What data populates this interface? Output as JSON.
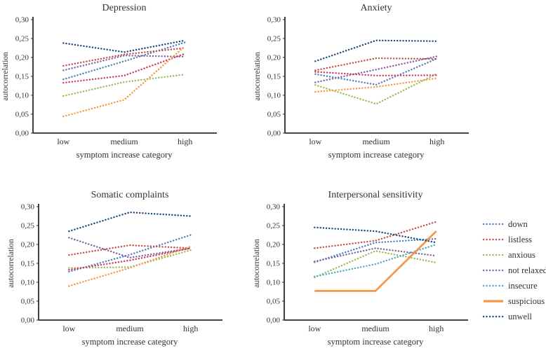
{
  "figure": {
    "background": "#ffffff",
    "text_color": "#333333",
    "axis_color": "#2b2b2b"
  },
  "legend": {
    "position": "outside-right-middle",
    "items": [
      {
        "label": "down",
        "color": "#4F81BD",
        "style": "dotted"
      },
      {
        "label": "listless",
        "color": "#C0504D",
        "style": "dotted"
      },
      {
        "label": "anxious",
        "color": "#9BBB59",
        "style": "dotted"
      },
      {
        "label": "not relaxed",
        "color": "#8064A2",
        "style": "dotted"
      },
      {
        "label": "insecure",
        "color": "#4BACC6",
        "style": "dotted"
      },
      {
        "label": "suspicious",
        "color": "#F79646",
        "style": "solid"
      },
      {
        "label": "unwell",
        "color": "#1F497D",
        "style": "dotted"
      }
    ]
  },
  "chart_data": [
    {
      "type": "line",
      "title": "Depression",
      "xlabel": "symptom increase category",
      "ylabel": "autocorrelation",
      "categories": [
        "low",
        "medium",
        "high"
      ],
      "ylim": [
        0,
        0.3
      ],
      "ytick_labels": [
        "0,00",
        "0,05",
        "0,10",
        "0,15",
        "0,20",
        "0,25",
        "0,30"
      ],
      "grid": false,
      "series": [
        {
          "name": "down",
          "color": "#4F81BD",
          "style": "dotted",
          "values": [
            0.142,
            0.19,
            0.24
          ]
        },
        {
          "name": "listless",
          "color": "#C0504D",
          "style": "dotted",
          "values": [
            0.178,
            0.208,
            0.225
          ]
        },
        {
          "name": "anxious",
          "color": "#9BBB59",
          "style": "dotted",
          "values": [
            0.098,
            0.135,
            0.155
          ]
        },
        {
          "name": "not relaxed",
          "color": "#8064A2",
          "style": "dotted",
          "values": [
            0.166,
            0.205,
            0.202
          ]
        },
        {
          "name": "insecure",
          "color": "#CB3A64",
          "style": "dotted",
          "values": [
            0.133,
            0.152,
            0.21
          ]
        },
        {
          "name": "suspicious",
          "color": "#F79646",
          "style": "dotted",
          "values": [
            0.044,
            0.088,
            0.23
          ]
        },
        {
          "name": "unwell",
          "color": "#1F497D",
          "style": "dotted",
          "values": [
            0.238,
            0.214,
            0.245
          ]
        }
      ]
    },
    {
      "type": "line",
      "title": "Anxiety",
      "xlabel": "symptom increase category",
      "ylabel": "autocorrelation",
      "categories": [
        "low",
        "medium",
        "high"
      ],
      "ylim": [
        0,
        0.3
      ],
      "ytick_labels": [
        "0,00",
        "0,05",
        "0,10",
        "0,15",
        "0,20",
        "0,25",
        "0,30"
      ],
      "grid": false,
      "series": [
        {
          "name": "down",
          "color": "#4F81BD",
          "style": "dotted",
          "values": [
            0.156,
            0.128,
            0.197
          ]
        },
        {
          "name": "listless",
          "color": "#C0504D",
          "style": "dotted",
          "values": [
            0.166,
            0.198,
            0.196
          ]
        },
        {
          "name": "anxious",
          "color": "#9BBB59",
          "style": "dotted",
          "values": [
            0.127,
            0.077,
            0.157
          ]
        },
        {
          "name": "not relaxed",
          "color": "#8064A2",
          "style": "dotted",
          "values": [
            0.134,
            0.168,
            0.203
          ]
        },
        {
          "name": "insecure",
          "color": "#CB3A64",
          "style": "dotted",
          "values": [
            0.162,
            0.152,
            0.153
          ]
        },
        {
          "name": "suspicious",
          "color": "#F79646",
          "style": "dotted",
          "values": [
            0.109,
            0.122,
            0.145
          ]
        },
        {
          "name": "unwell",
          "color": "#1F497D",
          "style": "dotted",
          "values": [
            0.19,
            0.245,
            0.243
          ]
        }
      ]
    },
    {
      "type": "line",
      "title": "Somatic complaints",
      "xlabel": "symptom increase category",
      "ylabel": "autocorrelation",
      "categories": [
        "low",
        "medium",
        "high"
      ],
      "ylim": [
        0,
        0.3
      ],
      "ytick_labels": [
        "0,00",
        "0,05",
        "0,10",
        "0,15",
        "0,20",
        "0,25",
        "0,30"
      ],
      "grid": false,
      "series": [
        {
          "name": "down",
          "color": "#4F81BD",
          "style": "dotted",
          "values": [
            0.128,
            0.173,
            0.225
          ]
        },
        {
          "name": "listless",
          "color": "#C0504D",
          "style": "dotted",
          "values": [
            0.172,
            0.198,
            0.19
          ]
        },
        {
          "name": "anxious",
          "color": "#9BBB59",
          "style": "dotted",
          "values": [
            0.138,
            0.14,
            0.185
          ]
        },
        {
          "name": "not relaxed",
          "color": "#8064A2",
          "style": "dotted",
          "values": [
            0.218,
            0.165,
            0.19
          ]
        },
        {
          "name": "insecure",
          "color": "#CB3A64",
          "style": "dotted",
          "values": [
            0.133,
            0.158,
            0.19
          ]
        },
        {
          "name": "suspicious",
          "color": "#F79646",
          "style": "dotted",
          "values": [
            0.09,
            0.138,
            0.195
          ]
        },
        {
          "name": "unwell",
          "color": "#1F497D",
          "style": "dotted",
          "values": [
            0.235,
            0.285,
            0.275
          ]
        }
      ]
    },
    {
      "type": "line",
      "title": "Interpersonal sensitivity",
      "xlabel": "symptom increase category",
      "ylabel": "autocorrelation",
      "categories": [
        "low",
        "medium",
        "high"
      ],
      "ylim": [
        0,
        0.3
      ],
      "ytick_labels": [
        "0,00",
        "0,05",
        "0,10",
        "0,15",
        "0,20",
        "0,25",
        "0,30"
      ],
      "grid": false,
      "series": [
        {
          "name": "down",
          "color": "#4F81BD",
          "style": "dotted",
          "values": [
            0.153,
            0.205,
            0.215
          ]
        },
        {
          "name": "listless",
          "color": "#C0504D",
          "style": "dotted",
          "values": [
            0.19,
            0.21,
            0.26
          ]
        },
        {
          "name": "anxious",
          "color": "#9BBB59",
          "style": "dotted",
          "values": [
            0.113,
            0.183,
            0.152
          ]
        },
        {
          "name": "not relaxed",
          "color": "#8064A2",
          "style": "dotted",
          "values": [
            0.155,
            0.19,
            0.17
          ]
        },
        {
          "name": "insecure",
          "color": "#4BACC6",
          "style": "dotted",
          "values": [
            0.115,
            0.148,
            0.2
          ]
        },
        {
          "name": "suspicious",
          "color": "#F79646",
          "style": "solid",
          "values": [
            0.077,
            0.077,
            0.235
          ]
        },
        {
          "name": "unwell",
          "color": "#1F497D",
          "style": "dotted",
          "values": [
            0.245,
            0.235,
            0.205
          ]
        }
      ]
    }
  ]
}
